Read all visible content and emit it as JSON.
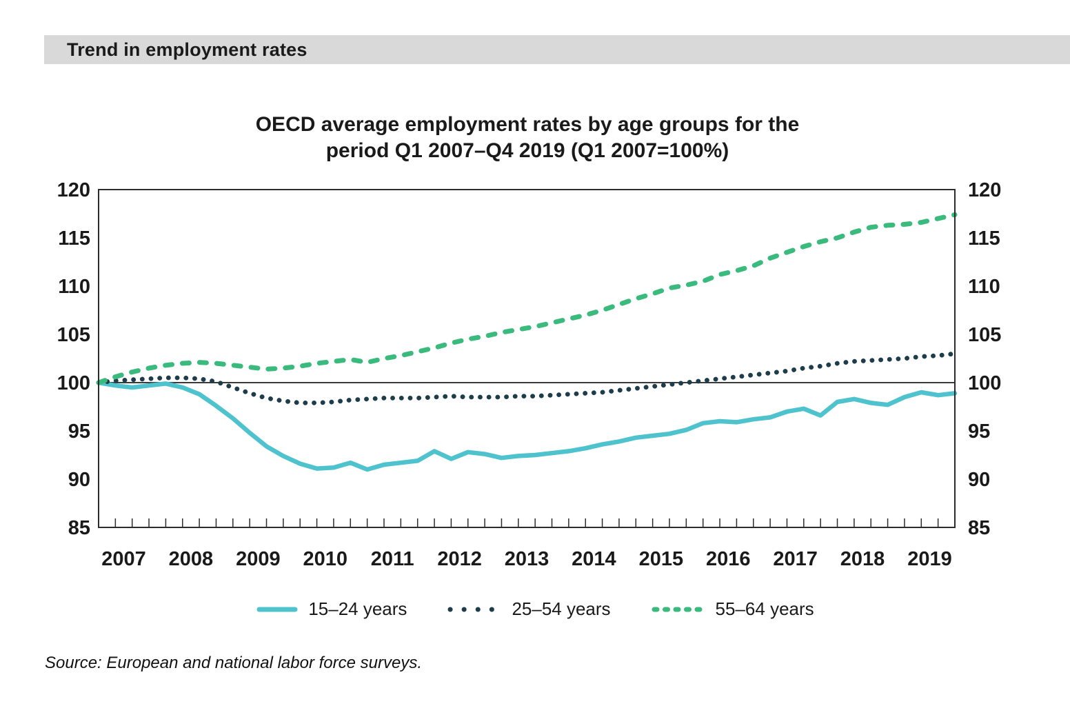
{
  "header": {
    "title": "Trend in employment rates"
  },
  "chart": {
    "title_line1": "OECD average employment rates by age groups for the",
    "title_line2": "period Q1 2007–Q4 2019 (Q1 2007=100%)"
  },
  "source": "Source: European and national labor force surveys.",
  "colors": {
    "header_bg": "#d9d9d9",
    "axis": "#2b2b2b",
    "reference_line": "#3a3a3a",
    "series_youth": "#4ec3ce",
    "series_prime": "#1e3d4a",
    "series_older": "#3bba7e"
  },
  "chart_data": {
    "type": "line",
    "title": "OECD average employment rates by age groups for the period Q1 2007–Q4 2019 (Q1 2007=100%)",
    "x_unit": "quarter",
    "x_start": "Q1 2007",
    "x_end": "Q4 2019",
    "year_labels": [
      "2007",
      "2008",
      "2009",
      "2010",
      "2011",
      "2012",
      "2013",
      "2014",
      "2015",
      "2016",
      "2017",
      "2018",
      "2019"
    ],
    "ylim": [
      85,
      120
    ],
    "yticks": [
      85,
      90,
      95,
      100,
      105,
      110,
      115,
      120
    ],
    "y_axis_sides": "both",
    "reference_line": 100,
    "grid": false,
    "legend_position": "bottom",
    "series": [
      {
        "name": "15–24 years",
        "style": "solid",
        "color": "#4ec3ce",
        "values": [
          100,
          99.7,
          99.5,
          99.7,
          99.9,
          99.5,
          98.8,
          97.6,
          96.3,
          94.8,
          93.4,
          92.4,
          91.6,
          91.1,
          91.2,
          91.7,
          91.0,
          91.5,
          91.7,
          91.9,
          92.9,
          92.1,
          92.8,
          92.6,
          92.2,
          92.4,
          92.5,
          92.7,
          92.9,
          93.2,
          93.6,
          93.9,
          94.3,
          94.5,
          94.7,
          95.1,
          95.8,
          96.0,
          95.9,
          96.2,
          96.4,
          97.0,
          97.3,
          96.6,
          98.0,
          98.3,
          97.9,
          97.7,
          98.5,
          99.0,
          98.7,
          98.9
        ]
      },
      {
        "name": "25–54 years",
        "style": "dotted",
        "color": "#1e3d4a",
        "values": [
          100,
          100.2,
          100.3,
          100.4,
          100.5,
          100.5,
          100.4,
          100.1,
          99.5,
          98.9,
          98.4,
          98.1,
          97.9,
          97.9,
          98.0,
          98.2,
          98.3,
          98.4,
          98.4,
          98.4,
          98.5,
          98.6,
          98.5,
          98.5,
          98.5,
          98.6,
          98.6,
          98.7,
          98.8,
          98.9,
          99.0,
          99.2,
          99.4,
          99.6,
          99.8,
          100.0,
          100.2,
          100.4,
          100.6,
          100.8,
          101.0,
          101.2,
          101.5,
          101.7,
          102.0,
          102.2,
          102.3,
          102.4,
          102.5,
          102.7,
          102.8,
          103.0
        ]
      },
      {
        "name": "55–64 years",
        "style": "dashed",
        "color": "#3bba7e",
        "values": [
          100,
          100.6,
          101.1,
          101.5,
          101.8,
          102.0,
          102.1,
          102.0,
          101.8,
          101.6,
          101.4,
          101.5,
          101.7,
          102.0,
          102.2,
          102.4,
          102.1,
          102.5,
          102.8,
          103.2,
          103.6,
          104.1,
          104.5,
          104.8,
          105.2,
          105.5,
          105.8,
          106.2,
          106.6,
          107.0,
          107.5,
          108.1,
          108.7,
          109.2,
          109.8,
          110.1,
          110.5,
          111.2,
          111.6,
          112.1,
          112.9,
          113.5,
          114.1,
          114.6,
          115.0,
          115.6,
          116.1,
          116.3,
          116.4,
          116.6,
          117.0,
          117.4
        ]
      }
    ]
  }
}
